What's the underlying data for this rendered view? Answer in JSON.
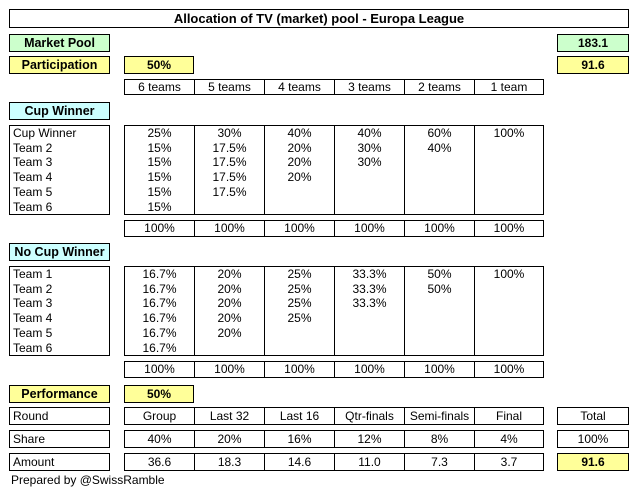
{
  "title": "Allocation of TV (market) pool - Europa League",
  "market_pool": {
    "label": "Market Pool",
    "value": "183.1"
  },
  "participation": {
    "label": "Participation",
    "pct": "50%",
    "value": "91.6"
  },
  "team_counts": [
    "6 teams",
    "5 teams",
    "4 teams",
    "3 teams",
    "2 teams",
    "1 team"
  ],
  "cup_winner": {
    "header": "Cup Winner",
    "rows": [
      "Cup Winner",
      "Team 2",
      "Team 3",
      "Team 4",
      "Team 5",
      "Team 6"
    ],
    "columns": [
      [
        "25%",
        "15%",
        "15%",
        "15%",
        "15%",
        "15%"
      ],
      [
        "30%",
        "17.5%",
        "17.5%",
        "17.5%",
        "17.5%"
      ],
      [
        "40%",
        "20%",
        "20%",
        "20%"
      ],
      [
        "40%",
        "30%",
        "30%"
      ],
      [
        "60%",
        "40%"
      ],
      [
        "100%"
      ]
    ],
    "totals": [
      "100%",
      "100%",
      "100%",
      "100%",
      "100%",
      "100%"
    ]
  },
  "no_cup_winner": {
    "header": "No Cup Winner",
    "rows": [
      "Team 1",
      "Team 2",
      "Team 3",
      "Team 4",
      "Team 5",
      "Team 6"
    ],
    "columns": [
      [
        "16.7%",
        "16.7%",
        "16.7%",
        "16.7%",
        "16.7%",
        "16.7%"
      ],
      [
        "20%",
        "20%",
        "20%",
        "20%",
        "20%"
      ],
      [
        "25%",
        "25%",
        "25%",
        "25%"
      ],
      [
        "33.3%",
        "33.3%",
        "33.3%"
      ],
      [
        "50%",
        "50%"
      ],
      [
        "100%"
      ]
    ],
    "totals": [
      "100%",
      "100%",
      "100%",
      "100%",
      "100%",
      "100%"
    ]
  },
  "performance": {
    "label": "Performance",
    "pct": "50%",
    "round_label": "Round",
    "share_label": "Share",
    "amount_label": "Amount",
    "rounds": [
      "Group",
      "Last 32",
      "Last 16",
      "Qtr-finals",
      "Semi-finals",
      "Final"
    ],
    "shares": [
      "40%",
      "20%",
      "16%",
      "12%",
      "8%",
      "4%"
    ],
    "amounts": [
      "36.6",
      "18.3",
      "14.6",
      "11.0",
      "7.3",
      "3.7"
    ],
    "total_label": "Total",
    "total_share": "100%",
    "total_amount": "91.6"
  },
  "credit": "Prepared by @SwissRamble",
  "colors": {
    "green": "#ccffcc",
    "yellow": "#ffff99",
    "cyan": "#ccffff",
    "border": "#000000"
  }
}
